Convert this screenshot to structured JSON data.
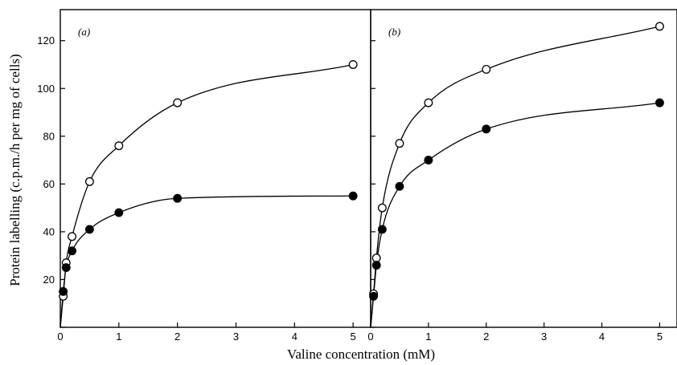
{
  "figure": {
    "ylabel": "Protein labelling (c.p.m./h per mg of cells)",
    "xlabel": "Valine concentration (mM)"
  },
  "chart_data": [
    {
      "type": "line",
      "panel_label": "(a)",
      "xlabel": "Valine concentration (mM)",
      "ylabel": "Protein labelling (c.p.m./h per mg of cells)",
      "xlim": [
        0,
        5.3
      ],
      "ylim": [
        0,
        133
      ],
      "xticks": [
        0,
        1,
        2,
        3,
        4,
        5
      ],
      "yticks": [
        0,
        20,
        40,
        60,
        80,
        100,
        120
      ],
      "ytick_labels": [
        "20",
        "40",
        "60",
        "80",
        "100",
        "120"
      ],
      "grid": false,
      "series": [
        {
          "marker": "open-circle",
          "x": [
            0.05,
            0.1,
            0.2,
            0.5,
            1,
            2,
            5
          ],
          "y": [
            13,
            27,
            38,
            61,
            76,
            94,
            110
          ]
        },
        {
          "marker": "filled-circle",
          "x": [
            0.05,
            0.1,
            0.2,
            0.5,
            1,
            2,
            5
          ],
          "y": [
            15,
            25,
            32,
            41,
            48,
            54,
            55
          ]
        }
      ]
    },
    {
      "type": "line",
      "panel_label": "(b)",
      "xlabel": "Valine concentration (mM)",
      "ylabel": "",
      "xlim": [
        0,
        5.3
      ],
      "ylim": [
        0,
        133
      ],
      "xticks": [
        0,
        1,
        2,
        3,
        4,
        5
      ],
      "yticks": [
        0,
        20,
        40,
        60,
        80,
        100,
        120
      ],
      "grid": false,
      "series": [
        {
          "marker": "open-circle",
          "x": [
            0.05,
            0.1,
            0.2,
            0.5,
            1,
            2,
            5
          ],
          "y": [
            14,
            29,
            50,
            77,
            94,
            108,
            126
          ]
        },
        {
          "marker": "filled-circle",
          "x": [
            0.05,
            0.1,
            0.2,
            0.5,
            1,
            2,
            5
          ],
          "y": [
            13,
            26,
            41,
            59,
            70,
            83,
            94
          ]
        }
      ]
    }
  ]
}
